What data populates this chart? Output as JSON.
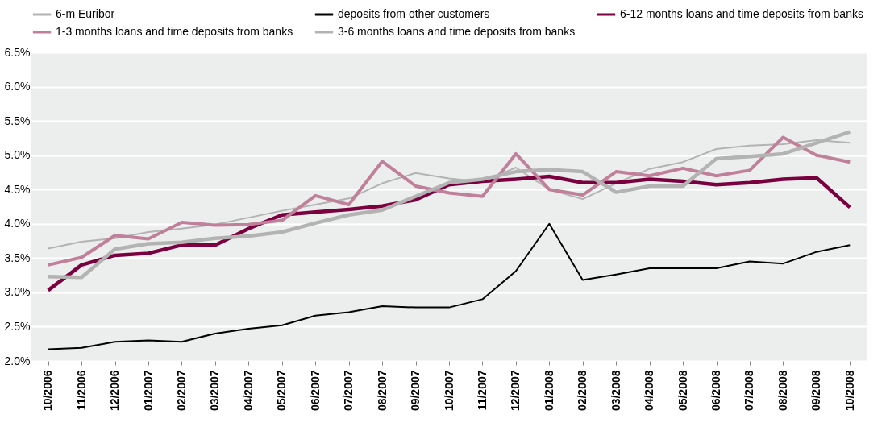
{
  "chart_data": {
    "type": "line",
    "categories": [
      "10/2006",
      "11/2006",
      "12/2006",
      "01/2007",
      "02/2007",
      "03/2007",
      "04/2007",
      "05/2007",
      "06/2007",
      "07/2007",
      "08/2007",
      "09/2007",
      "10/2007",
      "11/2007",
      "12/2007",
      "01/2008",
      "02/2008",
      "03/2008",
      "04/2008",
      "05/2008",
      "06/2008",
      "07/2008",
      "08/2008",
      "09/2008",
      "10/2008"
    ],
    "series": [
      {
        "name": "6-m Euribor",
        "color": "#b3b3b3",
        "values": [
          3.64,
          3.74,
          3.79,
          3.88,
          3.93,
          3.99,
          4.09,
          4.19,
          4.28,
          4.37,
          4.59,
          4.74,
          4.66,
          4.61,
          4.82,
          4.5,
          4.36,
          4.59,
          4.8,
          4.9,
          5.09,
          5.14,
          5.16,
          5.22,
          5.18
        ]
      },
      {
        "name": "deposits from other customers",
        "color": "#000000",
        "values": [
          2.17,
          2.19,
          2.28,
          2.3,
          2.28,
          2.4,
          2.47,
          2.52,
          2.66,
          2.71,
          2.8,
          2.78,
          2.78,
          2.9,
          3.31,
          4.0,
          3.18,
          3.26,
          3.35,
          3.35,
          3.35,
          3.45,
          3.42,
          3.59,
          3.69
        ]
      },
      {
        "name": "6-12  months loans and time deposits from banks",
        "color": "#7a0040",
        "values": [
          3.03,
          3.4,
          3.54,
          3.57,
          3.69,
          3.69,
          3.93,
          4.13,
          4.17,
          4.21,
          4.26,
          4.35,
          4.57,
          4.62,
          4.65,
          4.69,
          4.6,
          4.6,
          4.65,
          4.62,
          4.57,
          4.6,
          4.65,
          4.67,
          4.24
        ]
      },
      {
        "name": "1-3 months loans and time deposits from banks",
        "color": "#c0809a",
        "values": [
          3.4,
          3.51,
          3.83,
          3.78,
          4.02,
          3.98,
          3.99,
          4.05,
          4.41,
          4.28,
          4.91,
          4.55,
          4.45,
          4.4,
          5.02,
          4.5,
          4.42,
          4.76,
          4.7,
          4.81,
          4.7,
          4.78,
          5.26,
          5.0,
          4.9
        ]
      },
      {
        "name": "3-6 months loans and time deposits from banks",
        "color": "#b3b3b3",
        "values": [
          3.23,
          3.22,
          3.63,
          3.71,
          3.73,
          3.79,
          3.82,
          3.88,
          4.01,
          4.13,
          4.2,
          4.4,
          4.6,
          4.65,
          4.76,
          4.79,
          4.76,
          4.46,
          4.55,
          4.55,
          4.95,
          4.98,
          5.02,
          5.18,
          5.34
        ]
      }
    ],
    "ylim": [
      2.0,
      6.5
    ],
    "yticks": [
      {
        "value": 2.0,
        "label": "2.0%"
      },
      {
        "value": 2.5,
        "label": "2.5%"
      },
      {
        "value": 3.0,
        "label": "3.0%"
      },
      {
        "value": 3.5,
        "label": "3.5%"
      },
      {
        "value": 4.0,
        "label": "4.0%"
      },
      {
        "value": 4.5,
        "label": "4.5%"
      },
      {
        "value": 5.0,
        "label": "5.0%"
      },
      {
        "value": 5.5,
        "label": "5.5%"
      },
      {
        "value": 6.0,
        "label": "6.0%"
      },
      {
        "value": 6.5,
        "label": "6.5%"
      }
    ],
    "grid": "y",
    "legend": "top",
    "line_style": "solid",
    "marker": "none"
  }
}
